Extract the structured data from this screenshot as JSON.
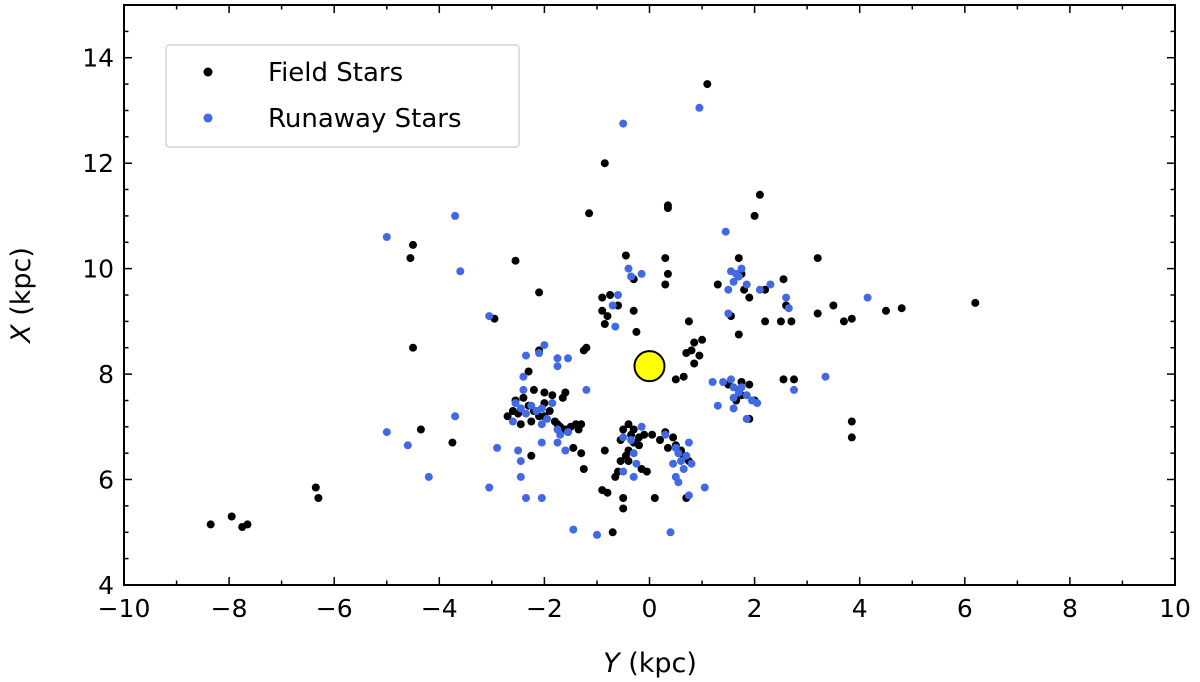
{
  "chart_data": {
    "type": "scatter",
    "xlabel_var": "Y",
    "xlabel_unit": "(kpc)",
    "ylabel_var": "X",
    "ylabel_unit": "(kpc)",
    "xlim": [
      -10,
      10
    ],
    "ylim": [
      4,
      15
    ],
    "x_ticks": [
      -10,
      -8,
      -6,
      -4,
      -2,
      0,
      2,
      4,
      6,
      8,
      10
    ],
    "x_tick_labels": [
      "−10",
      "−8",
      "−6",
      "−4",
      "−2",
      "0",
      "2",
      "4",
      "6",
      "8",
      "10"
    ],
    "y_ticks": [
      4,
      6,
      8,
      10,
      12,
      14
    ],
    "y_tick_labels": [
      "4",
      "6",
      "8",
      "10",
      "12",
      "14"
    ],
    "grid": false,
    "legend_position": "top-left",
    "series": [
      {
        "name": "Field Stars",
        "color": "#000000",
        "points": [
          [
            1.1,
            13.5
          ],
          [
            -0.85,
            12.0
          ],
          [
            0.35,
            11.2
          ],
          [
            0.35,
            11.15
          ],
          [
            2.1,
            11.4
          ],
          [
            2.0,
            11.0
          ],
          [
            -1.15,
            11.05
          ],
          [
            -4.5,
            10.45
          ],
          [
            -4.55,
            10.2
          ],
          [
            -2.55,
            10.15
          ],
          [
            -0.45,
            10.25
          ],
          [
            0.3,
            10.2
          ],
          [
            0.35,
            9.9
          ],
          [
            -0.3,
            9.8
          ],
          [
            0.3,
            9.7
          ],
          [
            1.7,
            10.2
          ],
          [
            1.3,
            9.7
          ],
          [
            1.8,
            9.6
          ],
          [
            2.2,
            9.6
          ],
          [
            2.55,
            9.8
          ],
          [
            2.6,
            9.3
          ],
          [
            2.5,
            9.0
          ],
          [
            2.7,
            9.0
          ],
          [
            2.2,
            9.0
          ],
          [
            3.2,
            10.2
          ],
          [
            3.2,
            9.15
          ],
          [
            3.5,
            9.3
          ],
          [
            3.7,
            9.0
          ],
          [
            3.85,
            9.05
          ],
          [
            4.5,
            9.2
          ],
          [
            4.8,
            9.25
          ],
          [
            6.2,
            9.35
          ],
          [
            1.55,
            9.1
          ],
          [
            1.7,
            8.75
          ],
          [
            1.9,
            9.45
          ],
          [
            1.75,
            9.9
          ],
          [
            -2.1,
            9.55
          ],
          [
            -0.9,
            9.45
          ],
          [
            -0.75,
            9.5
          ],
          [
            -0.6,
            9.3
          ],
          [
            -0.8,
            9.1
          ],
          [
            -0.85,
            8.95
          ],
          [
            -0.3,
            9.2
          ],
          [
            -0.25,
            8.8
          ],
          [
            -2.95,
            9.05
          ],
          [
            -0.9,
            9.2
          ],
          [
            0.75,
            9.0
          ],
          [
            0.85,
            8.6
          ],
          [
            1.0,
            8.65
          ],
          [
            0.8,
            8.45
          ],
          [
            0.95,
            8.35
          ],
          [
            0.85,
            8.2
          ],
          [
            0.7,
            8.4
          ],
          [
            -1.2,
            8.5
          ],
          [
            -1.25,
            8.45
          ],
          [
            -4.5,
            8.5
          ],
          [
            -2.1,
            8.45
          ],
          [
            -2.2,
            7.7
          ],
          [
            -2.3,
            8.05
          ],
          [
            -2.0,
            7.65
          ],
          [
            -1.6,
            7.65
          ],
          [
            -1.65,
            7.55
          ],
          [
            -1.85,
            7.6
          ],
          [
            -2.6,
            7.3
          ],
          [
            -2.7,
            7.2
          ],
          [
            -2.55,
            7.5
          ],
          [
            -2.4,
            7.55
          ],
          [
            -2.3,
            7.4
          ],
          [
            -2.2,
            7.3
          ],
          [
            -2.1,
            7.2
          ],
          [
            -2.0,
            7.45
          ],
          [
            -1.9,
            7.3
          ],
          [
            -1.8,
            7.1
          ],
          [
            -1.75,
            7.05
          ],
          [
            -1.5,
            7.0
          ],
          [
            -1.4,
            7.05
          ],
          [
            -1.3,
            7.05
          ],
          [
            -1.35,
            6.95
          ],
          [
            -1.55,
            6.9
          ],
          [
            -1.7,
            7.0
          ],
          [
            -2.25,
            7.1
          ],
          [
            -2.5,
            7.25
          ],
          [
            -2.45,
            7.05
          ],
          [
            -2.0,
            7.2
          ],
          [
            -1.45,
            6.6
          ],
          [
            -1.3,
            6.5
          ],
          [
            -2.25,
            6.45
          ],
          [
            -3.75,
            6.7
          ],
          [
            -4.35,
            6.95
          ],
          [
            -1.6,
            6.95
          ],
          [
            0.5,
            7.9
          ],
          [
            0.65,
            7.95
          ],
          [
            1.5,
            7.8
          ],
          [
            1.7,
            7.7
          ],
          [
            1.75,
            7.85
          ],
          [
            1.9,
            7.8
          ],
          [
            2.0,
            7.5
          ],
          [
            1.65,
            7.5
          ],
          [
            1.9,
            7.15
          ],
          [
            2.55,
            7.9
          ],
          [
            2.75,
            7.9
          ],
          [
            1.75,
            7.6
          ],
          [
            -0.4,
            7.05
          ],
          [
            -0.35,
            6.85
          ],
          [
            -0.4,
            6.55
          ],
          [
            -0.45,
            6.45
          ],
          [
            -0.4,
            6.35
          ],
          [
            -0.3,
            6.95
          ],
          [
            -0.2,
            6.8
          ],
          [
            -0.2,
            6.65
          ],
          [
            -0.1,
            6.85
          ],
          [
            0.05,
            6.85
          ],
          [
            0.2,
            6.75
          ],
          [
            0.3,
            6.9
          ],
          [
            0.35,
            6.6
          ],
          [
            0.45,
            6.8
          ],
          [
            0.5,
            6.65
          ],
          [
            0.6,
            6.55
          ],
          [
            0.65,
            6.45
          ],
          [
            0.75,
            6.35
          ],
          [
            -0.5,
            6.95
          ],
          [
            -0.55,
            6.75
          ],
          [
            -0.3,
            6.7
          ],
          [
            -0.15,
            6.2
          ],
          [
            -0.05,
            6.15
          ],
          [
            -0.6,
            6.15
          ],
          [
            -0.65,
            6.05
          ],
          [
            -0.5,
            5.65
          ],
          [
            -0.5,
            5.45
          ],
          [
            -0.9,
            5.8
          ],
          [
            -0.8,
            5.75
          ],
          [
            -0.7,
            5.0
          ],
          [
            0.1,
            5.65
          ],
          [
            0.7,
            5.65
          ],
          [
            -0.85,
            6.55
          ],
          [
            -0.55,
            6.35
          ],
          [
            -1.25,
            6.2
          ],
          [
            3.85,
            7.1
          ],
          [
            3.85,
            6.8
          ],
          [
            -8.35,
            5.15
          ],
          [
            -7.95,
            5.3
          ],
          [
            -7.75,
            5.1
          ],
          [
            -7.65,
            5.15
          ],
          [
            -6.35,
            5.85
          ],
          [
            -6.3,
            5.65
          ]
        ]
      },
      {
        "name": "Runaway Stars",
        "color": "#4169e1",
        "points": [
          [
            0.95,
            13.05
          ],
          [
            -0.5,
            12.75
          ],
          [
            -3.7,
            11.0
          ],
          [
            -5.0,
            10.6
          ],
          [
            -3.6,
            9.95
          ],
          [
            1.45,
            10.7
          ],
          [
            -0.4,
            10.0
          ],
          [
            -0.35,
            9.85
          ],
          [
            -0.15,
            9.9
          ],
          [
            1.55,
            9.95
          ],
          [
            1.65,
            9.9
          ],
          [
            1.7,
            9.85
          ],
          [
            1.75,
            10.0
          ],
          [
            1.6,
            9.75
          ],
          [
            1.5,
            9.6
          ],
          [
            1.85,
            9.7
          ],
          [
            2.3,
            9.7
          ],
          [
            2.1,
            9.6
          ],
          [
            2.6,
            9.45
          ],
          [
            2.65,
            9.25
          ],
          [
            1.5,
            9.15
          ],
          [
            4.15,
            9.45
          ],
          [
            -3.05,
            9.1
          ],
          [
            -0.6,
            9.5
          ],
          [
            -0.7,
            9.3
          ],
          [
            -0.65,
            8.9
          ],
          [
            -2.0,
            8.55
          ],
          [
            -2.1,
            8.4
          ],
          [
            -2.35,
            8.35
          ],
          [
            -1.75,
            8.3
          ],
          [
            -1.55,
            8.3
          ],
          [
            -1.75,
            8.15
          ],
          [
            -2.4,
            7.95
          ],
          [
            -2.4,
            7.7
          ],
          [
            -1.85,
            7.45
          ],
          [
            -1.2,
            7.7
          ],
          [
            -2.55,
            7.45
          ],
          [
            -2.45,
            7.35
          ],
          [
            -2.35,
            7.25
          ],
          [
            -2.25,
            7.4
          ],
          [
            -2.15,
            7.3
          ],
          [
            -2.05,
            7.35
          ],
          [
            -1.95,
            7.15
          ],
          [
            -1.75,
            6.95
          ],
          [
            -1.55,
            6.9
          ],
          [
            -1.7,
            6.85
          ],
          [
            -2.6,
            7.1
          ],
          [
            -2.05,
            7.05
          ],
          [
            -3.7,
            7.2
          ],
          [
            -5.0,
            6.9
          ],
          [
            -4.6,
            6.65
          ],
          [
            -2.9,
            6.6
          ],
          [
            -2.5,
            6.55
          ],
          [
            -2.45,
            6.35
          ],
          [
            -2.05,
            6.7
          ],
          [
            -1.75,
            6.7
          ],
          [
            -1.6,
            6.55
          ],
          [
            -4.2,
            6.05
          ],
          [
            -3.05,
            5.85
          ],
          [
            -2.45,
            6.05
          ],
          [
            -2.35,
            5.65
          ],
          [
            -2.05,
            5.65
          ],
          [
            -1.45,
            5.05
          ],
          [
            -1.0,
            4.95
          ],
          [
            0.4,
            5.0
          ],
          [
            1.2,
            7.85
          ],
          [
            1.4,
            7.85
          ],
          [
            1.55,
            7.9
          ],
          [
            1.6,
            7.75
          ],
          [
            1.7,
            7.65
          ],
          [
            1.75,
            7.75
          ],
          [
            1.85,
            7.6
          ],
          [
            1.95,
            7.5
          ],
          [
            2.05,
            7.45
          ],
          [
            1.6,
            7.55
          ],
          [
            1.3,
            7.4
          ],
          [
            1.6,
            7.35
          ],
          [
            1.85,
            7.15
          ],
          [
            2.75,
            7.7
          ],
          [
            3.35,
            7.95
          ],
          [
            -0.5,
            6.8
          ],
          [
            -0.35,
            6.75
          ],
          [
            -0.3,
            6.5
          ],
          [
            -0.25,
            6.3
          ],
          [
            -0.15,
            7.0
          ],
          [
            0.3,
            6.85
          ],
          [
            0.5,
            6.6
          ],
          [
            0.55,
            6.5
          ],
          [
            0.6,
            6.35
          ],
          [
            0.7,
            6.45
          ],
          [
            0.8,
            6.3
          ],
          [
            0.65,
            6.2
          ],
          [
            0.75,
            6.7
          ],
          [
            0.45,
            6.3
          ],
          [
            -0.5,
            6.15
          ],
          [
            -0.3,
            6.05
          ],
          [
            0.5,
            6.05
          ],
          [
            0.55,
            5.95
          ],
          [
            1.05,
            5.85
          ],
          [
            0.75,
            5.7
          ]
        ]
      }
    ],
    "annotations": [
      {
        "shape": "circle",
        "x": 0.0,
        "y": 8.15,
        "fill": "#ffff00",
        "stroke": "#000000"
      }
    ]
  }
}
